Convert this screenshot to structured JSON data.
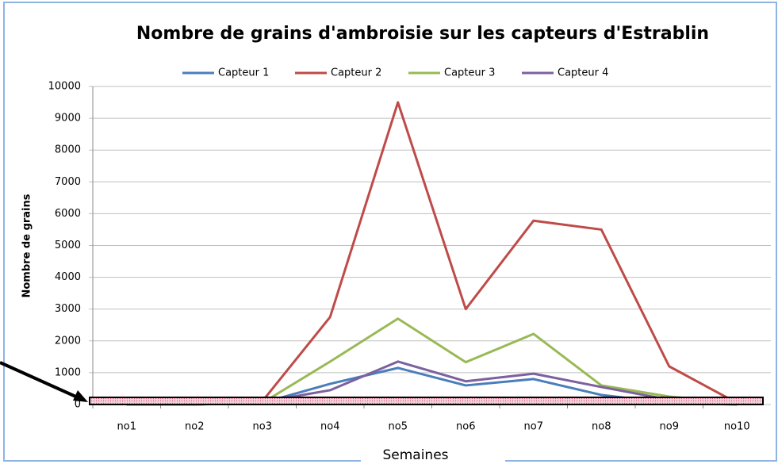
{
  "chart_data": {
    "type": "line",
    "title": "Nombre de grains d'ambroisie sur les capteurs d'Estrablin",
    "x_label": "Semaines",
    "y_label": "Nombre de grains",
    "categories": [
      "no1",
      "no2",
      "no3",
      "no4",
      "no5",
      "no6",
      "no7",
      "no8",
      "no9",
      "no10"
    ],
    "series": [
      {
        "name": "Capteur 1",
        "color": "#4a7ebb",
        "values": [
          0,
          0,
          50,
          650,
          1150,
          600,
          800,
          300,
          50,
          0
        ]
      },
      {
        "name": "Capteur 2",
        "color": "#be4b48",
        "values": [
          0,
          0,
          100,
          2750,
          9500,
          3000,
          5780,
          5500,
          1200,
          50
        ]
      },
      {
        "name": "Capteur 3",
        "color": "#98b954",
        "values": [
          0,
          0,
          50,
          1350,
          2700,
          1330,
          2220,
          600,
          250,
          50
        ]
      },
      {
        "name": "Capteur 4",
        "color": "#7d60a0",
        "values": [
          0,
          0,
          80,
          450,
          1350,
          730,
          970,
          550,
          150,
          50
        ]
      }
    ],
    "ylim": [
      0,
      10000
    ],
    "yticks": [
      0,
      1000,
      2000,
      3000,
      4000,
      5000,
      6000,
      7000,
      8000,
      9000,
      10000
    ],
    "grid": true,
    "legend": "top"
  }
}
